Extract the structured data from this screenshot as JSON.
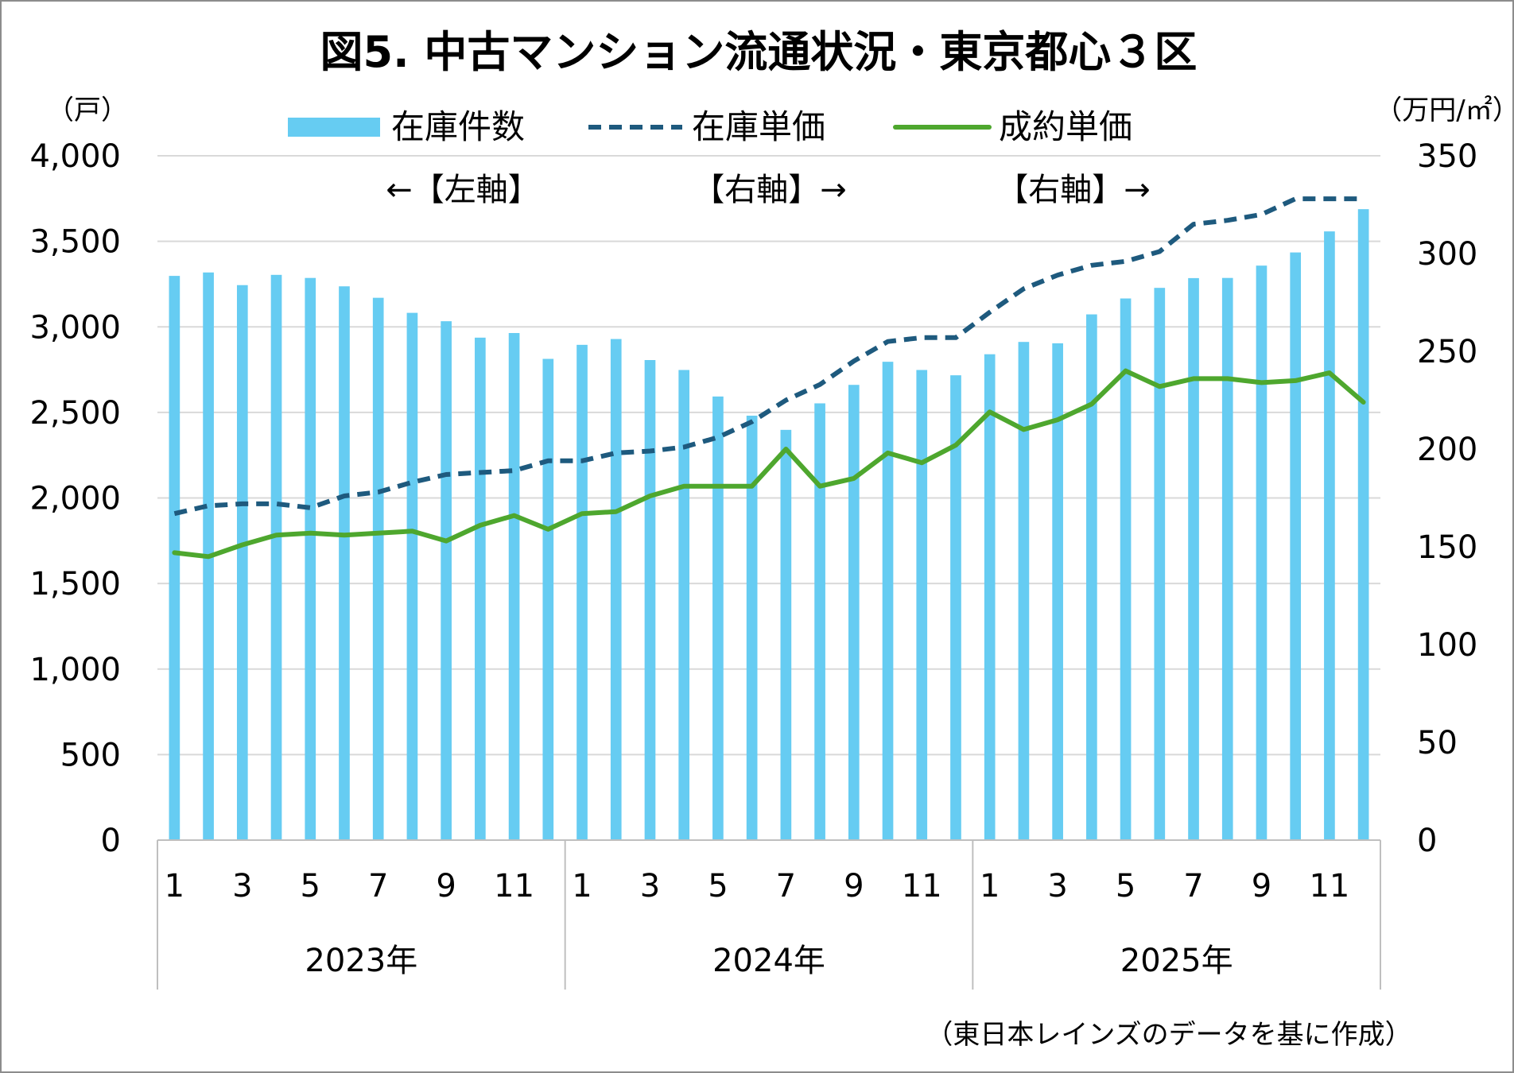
{
  "chart_data": {
    "type": "bar",
    "title": "図5. 中古マンション流通状況・東京都心３区",
    "left_axis": {
      "unit_label": "（戸）",
      "min": 0,
      "max": 4000,
      "ticks": [
        0,
        500,
        1000,
        1500,
        2000,
        2500,
        3000,
        3500,
        4000
      ],
      "tick_labels": [
        "0",
        "500",
        "1,000",
        "1,500",
        "2,000",
        "2,500",
        "3,000",
        "3,500",
        "4,000"
      ]
    },
    "right_axis": {
      "unit_label": "（万円/㎡）",
      "min": 0,
      "max": 350,
      "ticks": [
        0,
        50,
        100,
        150,
        200,
        250,
        300,
        350
      ],
      "tick_labels": [
        "0",
        "50",
        "100",
        "150",
        "200",
        "250",
        "300",
        "350"
      ]
    },
    "x": {
      "months": [
        1,
        2,
        3,
        4,
        5,
        6,
        7,
        8,
        9,
        10,
        11,
        12,
        1,
        2,
        3,
        4,
        5,
        6,
        7,
        8,
        9,
        10,
        11,
        12,
        1,
        2,
        3,
        4,
        5,
        6,
        7,
        8,
        9,
        10,
        11,
        12
      ],
      "month_labels": [
        "1",
        "3",
        "5",
        "7",
        "9",
        "11",
        "1",
        "3",
        "5",
        "7",
        "9",
        "11",
        "1",
        "3",
        "5",
        "7",
        "9",
        "11"
      ],
      "years": [
        "2023年",
        "2024年",
        "2025年"
      ]
    },
    "grid": true,
    "legend": {
      "position": "top",
      "items": [
        "在庫件数",
        "在庫単価",
        "成約単価"
      ]
    },
    "axis_notes": [
      "←【左軸】",
      "【右軸】→",
      "【右軸】→"
    ],
    "source_note": "（東日本レインズのデータを基に作成）",
    "series": [
      {
        "name": "在庫件数",
        "kind": "bar",
        "axis": "left",
        "color": "#66ccf2",
        "values": [
          3298,
          3318,
          3244,
          3304,
          3286,
          3237,
          3170,
          3082,
          3033,
          2937,
          2964,
          2813,
          2895,
          2929,
          2806,
          2748,
          2593,
          2481,
          2398,
          2553,
          2661,
          2796,
          2748,
          2717,
          2840,
          2912,
          2904,
          3073,
          3166,
          3228,
          3285,
          3286,
          3358,
          3435,
          3558,
          3688
        ]
      },
      {
        "name": "在庫単価",
        "kind": "line",
        "dash": true,
        "axis": "right",
        "color": "#1e5a7e",
        "values": [
          167,
          171,
          172,
          172,
          170,
          176,
          178,
          183,
          187,
          188,
          189,
          194,
          194,
          198,
          199,
          201,
          206,
          214,
          225,
          233,
          245,
          255,
          257,
          257,
          270,
          282,
          289,
          294,
          296,
          301,
          315,
          317,
          320,
          328,
          328,
          328
        ]
      },
      {
        "name": "成約単価",
        "kind": "line",
        "dash": false,
        "axis": "right",
        "color": "#4ea72e",
        "values": [
          147,
          145,
          151,
          156,
          157,
          156,
          157,
          158,
          153,
          161,
          166,
          159,
          167,
          168,
          176,
          181,
          181,
          181,
          200,
          181,
          185,
          198,
          193,
          202,
          219,
          210,
          215,
          223,
          240,
          232,
          236,
          236,
          234,
          235,
          239,
          224
        ]
      }
    ]
  }
}
